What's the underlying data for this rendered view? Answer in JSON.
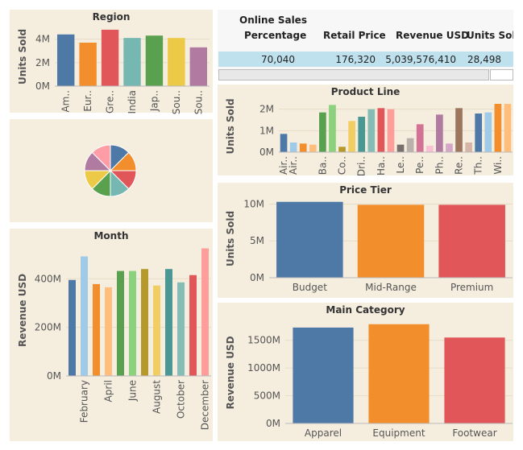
{
  "sales_table": {
    "header_line1": "Online Sales",
    "columns": [
      "Percentage",
      "Retail Price",
      "Revenue USD",
      "Units Sold"
    ],
    "values": [
      "70,040",
      "176,320",
      "5,039,576,410",
      "28,498"
    ]
  },
  "chart_data": [
    {
      "id": "region",
      "type": "bar",
      "title": "Region",
      "ylabel": "Units Sold",
      "categories": [
        "Am..",
        "Eur..",
        "Gre..",
        "India",
        "Jap..",
        "Sou..",
        "Sou.."
      ],
      "values": [
        4.4,
        3.7,
        4.8,
        4.1,
        4.3,
        4.1,
        3.3
      ],
      "unit": "M",
      "ylim": [
        0,
        5
      ],
      "yticks": [
        0,
        2,
        4
      ],
      "ytick_labels": [
        "0M",
        "2M",
        "4M"
      ],
      "colors": [
        "#4e79a7",
        "#f28e2b",
        "#e15759",
        "#76b7b2",
        "#59a14f",
        "#edc948",
        "#b07aa1"
      ]
    },
    {
      "id": "pie",
      "type": "pie",
      "title": "",
      "values": [
        1,
        1,
        1,
        1,
        1,
        1,
        1,
        1
      ],
      "colors": [
        "#4e79a7",
        "#f28e2b",
        "#e15759",
        "#76b7b2",
        "#59a14f",
        "#edc948",
        "#b07aa1",
        "#ff9da7"
      ]
    },
    {
      "id": "month",
      "type": "bar",
      "title": "Month",
      "ylabel": "Revenue USD",
      "categories": [
        "January",
        "February",
        "March",
        "April",
        "May",
        "June",
        "July",
        "August",
        "September",
        "October",
        "November",
        "December"
      ],
      "tick_labels": [
        "",
        "February",
        "",
        "April",
        "",
        "June",
        "",
        "August",
        "",
        "October",
        "",
        "December"
      ],
      "values": [
        395,
        492,
        378,
        365,
        432,
        432,
        440,
        372,
        440,
        385,
        415,
        525
      ],
      "unit": "M",
      "ylim": [
        0,
        540
      ],
      "yticks": [
        0,
        200,
        400
      ],
      "ytick_labels": [
        "0M",
        "200M",
        "400M"
      ],
      "colors": [
        "#4e79a7",
        "#a0cbe8",
        "#f28e2b",
        "#ffbe7d",
        "#59a14f",
        "#8cd17d",
        "#b6992d",
        "#f1ce63",
        "#499894",
        "#86bcb6",
        "#e15759",
        "#ff9d9a"
      ]
    },
    {
      "id": "product_line",
      "type": "bar",
      "title": "Product Line",
      "ylabel": "Units Sold",
      "categories": [
        "Air..",
        "Air..",
        "",
        "",
        "Ba..",
        "",
        "Co..",
        "",
        "Dri..",
        "",
        "Ha..",
        "",
        "Le..",
        "",
        "Pe..",
        "",
        "Ph..",
        "",
        "Re..",
        "",
        "Th..",
        "",
        "Wi..",
        ""
      ],
      "values": [
        0.85,
        0.45,
        0.4,
        0.35,
        1.85,
        2.2,
        0.25,
        1.45,
        1.65,
        2.0,
        2.05,
        2.0,
        0.35,
        0.65,
        1.3,
        0.3,
        1.75,
        0.4,
        2.05,
        0.45,
        1.8,
        1.85,
        2.25,
        2.25
      ],
      "unit": "M",
      "ylim": [
        0,
        2.4
      ],
      "yticks": [
        0,
        1,
        2
      ],
      "ytick_labels": [
        "0M",
        "1M",
        "2M"
      ],
      "colors": [
        "#4e79a7",
        "#a0cbe8",
        "#f28e2b",
        "#ffbe7d",
        "#59a14f",
        "#8cd17d",
        "#b6992d",
        "#f1ce63",
        "#499894",
        "#86bcb6",
        "#e15759",
        "#ff9d9a",
        "#79706e",
        "#bab0ac",
        "#d37295",
        "#fabfd2",
        "#b07aa1",
        "#d4a6c8",
        "#9d7660",
        "#d7b5a6",
        "#4e79a7",
        "#a0cbe8",
        "#f28e2b",
        "#ffbe7d"
      ]
    },
    {
      "id": "price_tier",
      "type": "bar",
      "title": "Price Tier",
      "ylabel": "Units Sold",
      "categories": [
        "Budget",
        "Mid-Range",
        "Premium"
      ],
      "values": [
        10.3,
        9.9,
        9.9
      ],
      "unit": "M",
      "ylim": [
        0,
        10.6
      ],
      "yticks": [
        0,
        5,
        10
      ],
      "ytick_labels": [
        "0M",
        "5M",
        "10M"
      ],
      "colors": [
        "#4e79a7",
        "#f28e2b",
        "#e15759"
      ]
    },
    {
      "id": "main_category",
      "type": "bar",
      "title": "Main Category",
      "ylabel": "Revenue USD",
      "categories": [
        "Apparel",
        "Equipment",
        "Footwear"
      ],
      "values": [
        1730,
        1790,
        1550
      ],
      "unit": "M",
      "ylim": [
        0,
        1830
      ],
      "yticks": [
        0,
        500,
        1000,
        1500
      ],
      "ytick_labels": [
        "0M",
        "500M",
        "1000M",
        "1500M"
      ],
      "colors": [
        "#4e79a7",
        "#f28e2b",
        "#e15759"
      ]
    }
  ]
}
